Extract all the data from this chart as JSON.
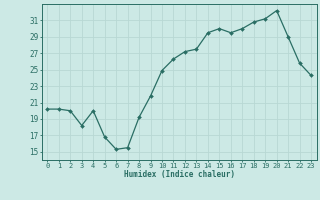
{
  "x": [
    0,
    1,
    2,
    3,
    4,
    5,
    6,
    7,
    8,
    9,
    10,
    11,
    12,
    13,
    14,
    15,
    16,
    17,
    18,
    19,
    20,
    21,
    22,
    23
  ],
  "y": [
    20.2,
    20.2,
    20.0,
    18.2,
    20.0,
    16.8,
    15.3,
    15.5,
    19.2,
    21.8,
    24.9,
    26.3,
    27.2,
    27.5,
    29.5,
    30.0,
    29.5,
    30.0,
    30.8,
    31.2,
    32.2,
    29.0,
    25.8,
    24.3
  ],
  "xlabel": "Humidex (Indice chaleur)",
  "bg_color": "#cce9e5",
  "grid_color": "#b8d8d4",
  "line_color": "#2a6e64",
  "ylim": [
    14,
    33
  ],
  "xlim": [
    -0.5,
    23.5
  ],
  "yticks": [
    15,
    17,
    19,
    21,
    23,
    25,
    27,
    29,
    31
  ],
  "xticks": [
    0,
    1,
    2,
    3,
    4,
    5,
    6,
    7,
    8,
    9,
    10,
    11,
    12,
    13,
    14,
    15,
    16,
    17,
    18,
    19,
    20,
    21,
    22,
    23
  ]
}
